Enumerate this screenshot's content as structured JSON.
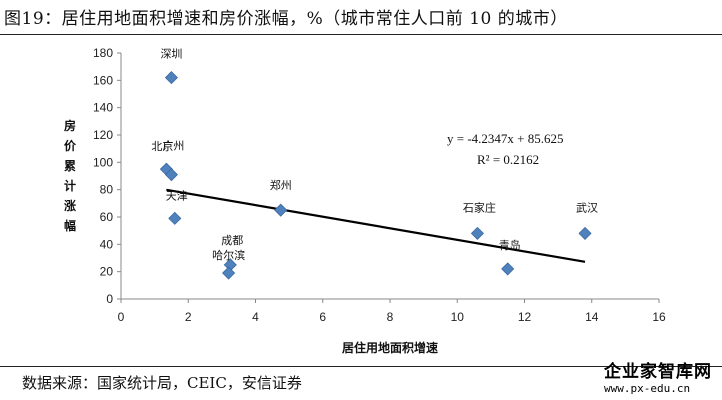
{
  "header": {
    "title": "图19：居住用地面积增速和房价涨幅，%（城市常住人口前 10 的城市）"
  },
  "footer": {
    "source": "数据来源：国家统计局，CEIC，安信证券",
    "watermark_name": "企业家智库网",
    "watermark_url": "www.px-edu.cn"
  },
  "chart_data": {
    "type": "scatter",
    "title": "",
    "xlabel": "居住用地面积增速",
    "ylabel": "房价累计涨幅",
    "xlim": [
      0,
      16
    ],
    "ylim": [
      0,
      180
    ],
    "xticks": [
      0,
      2,
      4,
      6,
      8,
      10,
      12,
      14,
      16
    ],
    "yticks": [
      0,
      20,
      40,
      60,
      80,
      100,
      120,
      140,
      160,
      180
    ],
    "grid": false,
    "marker_color": "#4F81BD",
    "trendline_color": "#000000",
    "points": [
      {
        "label": "深圳",
        "x": 1.5,
        "y": 162
      },
      {
        "label": "北京",
        "x": 1.35,
        "y": 95
      },
      {
        "label": "广州",
        "x": 1.5,
        "y": 91
      },
      {
        "label": "天津",
        "x": 1.6,
        "y": 59
      },
      {
        "label": "成都",
        "x": 3.25,
        "y": 25
      },
      {
        "label": "哈尔滨",
        "x": 3.2,
        "y": 19
      },
      {
        "label": "郑州",
        "x": 4.75,
        "y": 65
      },
      {
        "label": "石家庄",
        "x": 10.6,
        "y": 48
      },
      {
        "label": "青岛",
        "x": 11.5,
        "y": 22
      },
      {
        "label": "武汉",
        "x": 13.8,
        "y": 48
      }
    ],
    "trendline": {
      "slope": -4.2347,
      "intercept": 85.625,
      "x_range": [
        1.35,
        13.8
      ],
      "equation": "y = -4.2347x + 85.625",
      "r_squared": "R² = 0.2162"
    }
  }
}
